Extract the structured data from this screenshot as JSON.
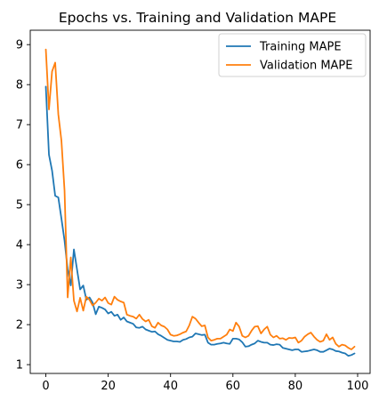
{
  "chart_data": {
    "type": "line",
    "title": "Epochs vs. Training and Validation MAPE",
    "xlabel": "",
    "ylabel": "",
    "xlim": [
      -5,
      104
    ],
    "ylim": [
      0.78,
      9.36
    ],
    "xticks": [
      0,
      20,
      40,
      60,
      80,
      100
    ],
    "yticks": [
      1,
      2,
      3,
      4,
      5,
      6,
      7,
      8,
      9
    ],
    "grid": false,
    "legend_position": "top-right",
    "series": [
      {
        "name": "Training MAPE",
        "color": "#1f77b4",
        "values": [
          7.95,
          6.25,
          5.85,
          5.22,
          5.18,
          4.65,
          4.1,
          3.38,
          2.98,
          3.88,
          3.38,
          2.88,
          2.98,
          2.62,
          2.68,
          2.55,
          2.26,
          2.45,
          2.42,
          2.38,
          2.28,
          2.32,
          2.22,
          2.25,
          2.12,
          2.18,
          2.08,
          2.05,
          2.02,
          1.93,
          1.92,
          1.95,
          1.88,
          1.85,
          1.82,
          1.83,
          1.76,
          1.72,
          1.67,
          1.62,
          1.6,
          1.58,
          1.58,
          1.57,
          1.62,
          1.64,
          1.68,
          1.7,
          1.78,
          1.76,
          1.74,
          1.75,
          1.55,
          1.5,
          1.5,
          1.52,
          1.53,
          1.55,
          1.53,
          1.52,
          1.65,
          1.65,
          1.63,
          1.56,
          1.45,
          1.46,
          1.5,
          1.53,
          1.6,
          1.57,
          1.55,
          1.55,
          1.5,
          1.49,
          1.51,
          1.5,
          1.42,
          1.4,
          1.38,
          1.36,
          1.38,
          1.38,
          1.32,
          1.33,
          1.34,
          1.36,
          1.38,
          1.36,
          1.32,
          1.32,
          1.36,
          1.4,
          1.38,
          1.34,
          1.33,
          1.3,
          1.28,
          1.22,
          1.24,
          1.28
        ]
      },
      {
        "name": "Validation MAPE",
        "color": "#ff7f0e",
        "values": [
          8.88,
          7.38,
          8.33,
          8.55,
          7.26,
          6.6,
          5.35,
          2.68,
          3.68,
          2.6,
          2.33,
          2.67,
          2.35,
          2.7,
          2.62,
          2.48,
          2.55,
          2.65,
          2.6,
          2.68,
          2.54,
          2.5,
          2.7,
          2.62,
          2.58,
          2.55,
          2.25,
          2.22,
          2.2,
          2.15,
          2.25,
          2.14,
          2.08,
          2.12,
          1.96,
          1.92,
          2.05,
          1.98,
          1.95,
          1.88,
          1.75,
          1.72,
          1.73,
          1.76,
          1.8,
          1.83,
          1.98,
          2.2,
          2.15,
          2.05,
          1.96,
          1.98,
          1.68,
          1.6,
          1.62,
          1.65,
          1.65,
          1.7,
          1.75,
          1.88,
          1.84,
          2.05,
          1.95,
          1.72,
          1.68,
          1.72,
          1.85,
          1.95,
          1.96,
          1.78,
          1.88,
          1.95,
          1.75,
          1.68,
          1.72,
          1.65,
          1.66,
          1.62,
          1.67,
          1.66,
          1.68,
          1.55,
          1.6,
          1.7,
          1.76,
          1.8,
          1.7,
          1.62,
          1.57,
          1.6,
          1.76,
          1.62,
          1.68,
          1.52,
          1.45,
          1.5,
          1.48,
          1.42,
          1.38,
          1.45
        ]
      }
    ]
  }
}
